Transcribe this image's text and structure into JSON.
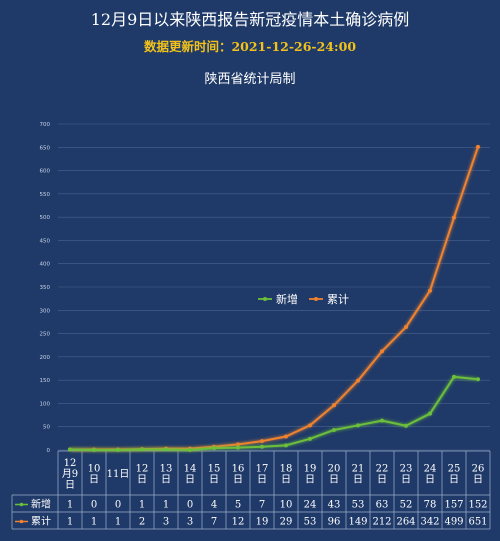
{
  "header": {
    "title": "12月9日以来陕西报告新冠疫情本土确诊病例",
    "subtitle": "数据更新时间：2021-12-26-24:00",
    "source": "陕西省统计局制"
  },
  "colors": {
    "background": "#1f3a68",
    "new_series": "#6cbf3a",
    "cumulative_series": "#f0822f",
    "grid": "#4a6390",
    "text": "#ffffff",
    "subtitle": "#f2c21b"
  },
  "chart_data": {
    "type": "line",
    "title": "12月9日以来陕西报告新冠疫情本土确诊病例",
    "categories": [
      "12月9日",
      "10日",
      "11日",
      "12日",
      "13日",
      "14日",
      "15日",
      "16日",
      "17日",
      "18日",
      "19日",
      "20日",
      "21日",
      "22日",
      "23日",
      "24日",
      "25日",
      "26日"
    ],
    "category_lines": [
      [
        "12",
        "月9",
        "日"
      ],
      [
        "10",
        "日"
      ],
      [
        "11日"
      ],
      [
        "12",
        "日"
      ],
      [
        "13",
        "日"
      ],
      [
        "14",
        "日"
      ],
      [
        "15",
        "日"
      ],
      [
        "16",
        "日"
      ],
      [
        "17",
        "日"
      ],
      [
        "18",
        "日"
      ],
      [
        "19",
        "日"
      ],
      [
        "20",
        "日"
      ],
      [
        "21",
        "日"
      ],
      [
        "22",
        "日"
      ],
      [
        "23",
        "日"
      ],
      [
        "24",
        "日"
      ],
      [
        "25",
        "日"
      ],
      [
        "26",
        "日"
      ]
    ],
    "series": [
      {
        "name": "新增",
        "values": [
          1,
          0,
          0,
          1,
          1,
          0,
          4,
          5,
          7,
          10,
          24,
          43,
          53,
          63,
          52,
          78,
          157,
          152
        ]
      },
      {
        "name": "累计",
        "values": [
          1,
          1,
          1,
          2,
          3,
          3,
          7,
          12,
          19,
          29,
          53,
          96,
          149,
          212,
          264,
          342,
          499,
          651
        ]
      }
    ],
    "ylim": [
      0,
      700
    ],
    "yticks": [
      0,
      50,
      100,
      150,
      200,
      250,
      300,
      350,
      400,
      450,
      500,
      550,
      600,
      650,
      700
    ],
    "legend_position": "center",
    "grid": true,
    "data_table": true
  }
}
